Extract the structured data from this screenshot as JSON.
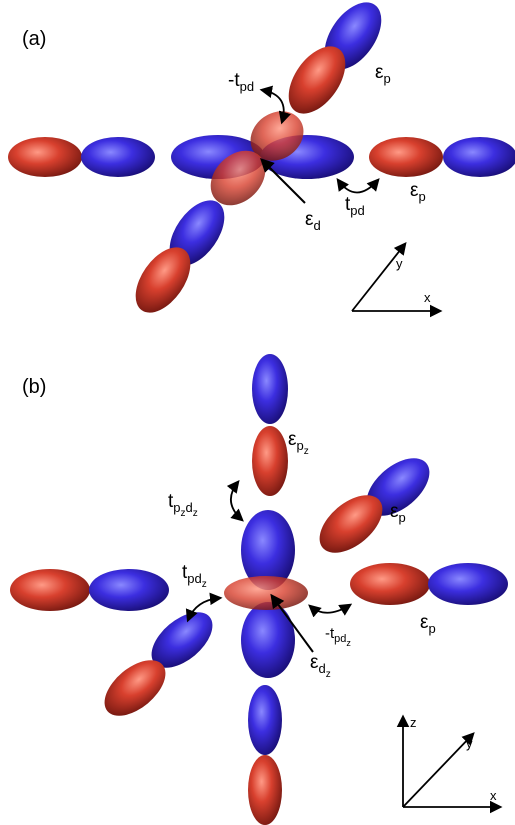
{
  "colors": {
    "p_positive_lobe": "#d23a2a",
    "p_negative_lobe": "#3a2ad8",
    "arrow": "#000000",
    "background": "#ffffff"
  },
  "panel_a": {
    "label": "(a)",
    "labels": {
      "eps_p_top": {
        "sym": "ε",
        "sub": "p"
      },
      "eps_p_right": {
        "sym": "ε",
        "sub": "p"
      },
      "eps_d": {
        "sym": "ε",
        "sub": "d"
      },
      "minus_t_pd": {
        "sym": "-t",
        "sub": "pd"
      },
      "t_pd": {
        "sym": "t",
        "sub": "pd"
      }
    },
    "axes": {
      "x": "x",
      "y": "y"
    }
  },
  "panel_b": {
    "label": "(b)",
    "labels": {
      "eps_pz": {
        "sym": "ε",
        "sub": "p",
        "subsub": "z"
      },
      "eps_p_upper": {
        "sym": "ε",
        "sub": "p"
      },
      "eps_p_right": {
        "sym": "ε",
        "sub": "p"
      },
      "eps_dz": {
        "sym": "ε",
        "sub": "d",
        "subsub": "z"
      },
      "t_pz_dz": {
        "sym": "t",
        "sub1": "p",
        "sub1sub": "z",
        "sub2": "d",
        "sub2sub": "z"
      },
      "t_pdz": {
        "sym": "t",
        "sub": "pd",
        "subsub": "z"
      },
      "minus_t_pdz": {
        "sym": "-t",
        "sub": "pd",
        "subsub": "z"
      }
    },
    "axes": {
      "x": "x",
      "y": "y",
      "z": "z"
    }
  }
}
